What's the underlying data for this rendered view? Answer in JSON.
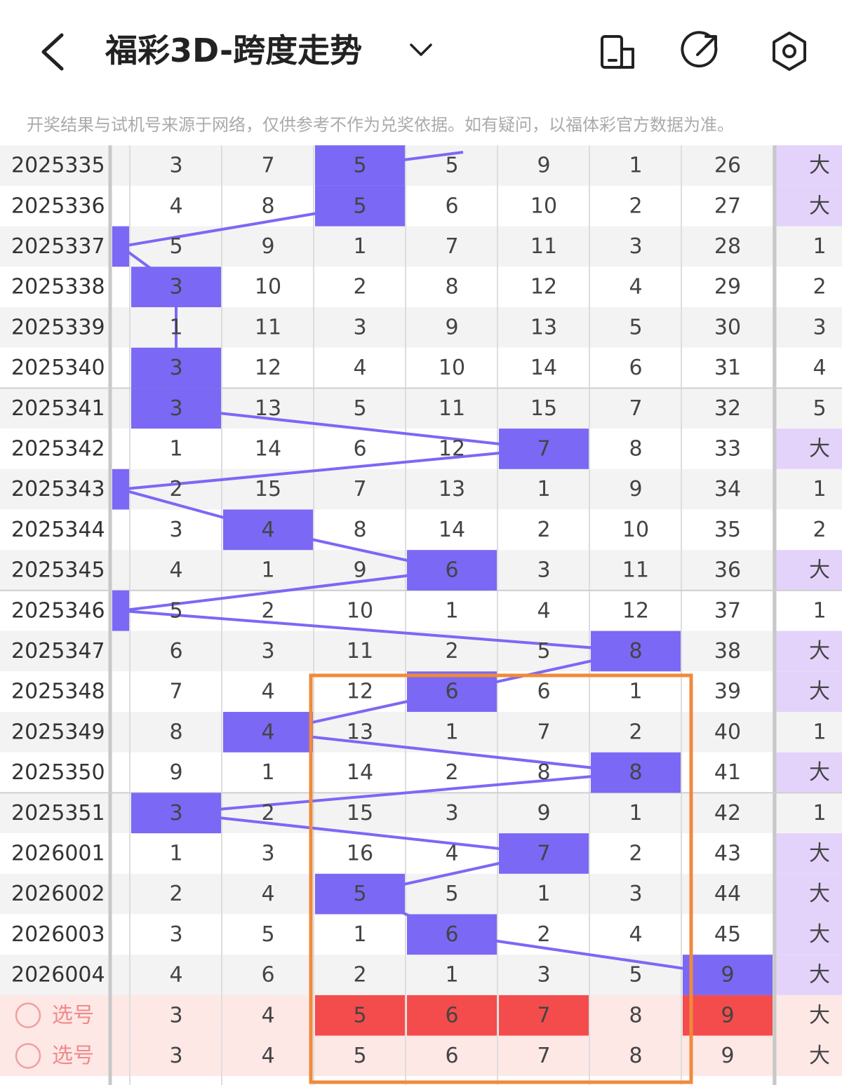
{
  "header": {
    "title": "福彩3D-跨度走势",
    "notice": "开奖结果与试机号来源于网络，仅供参考不作为兑奖依据。如有疑问，以福体彩官方数据为准。"
  },
  "table": {
    "rows": [
      {
        "issue": "2025335",
        "cells": [
          "3",
          "7",
          {
            "text": "5",
            "hit": true
          },
          "5",
          "9",
          "1",
          "26",
          "大"
        ]
      },
      {
        "issue": "2025336",
        "cells": [
          "4",
          "8",
          {
            "text": "5",
            "hit": true
          },
          "6",
          "10",
          "2",
          "27",
          "大"
        ]
      },
      {
        "issue": "2025337",
        "edge_hit": true,
        "cells": [
          "5",
          "9",
          "1",
          "7",
          "11",
          "3",
          "28",
          "1"
        ]
      },
      {
        "issue": "2025338",
        "cells": [
          {
            "text": "3",
            "hit": true
          },
          "10",
          "2",
          "8",
          "12",
          "4",
          "29",
          "2"
        ]
      },
      {
        "issue": "2025339",
        "cells": [
          "1",
          "11",
          "3",
          "9",
          "13",
          "5",
          "30",
          "3"
        ]
      },
      {
        "issue": "2025340",
        "cells": [
          {
            "text": "3",
            "hit": true
          },
          "12",
          "4",
          "10",
          "14",
          "6",
          "31",
          "4"
        ]
      },
      {
        "issue": "2025341",
        "cells": [
          {
            "text": "3",
            "hit": true
          },
          "13",
          "5",
          "11",
          "15",
          "7",
          "32",
          "5"
        ]
      },
      {
        "issue": "2025342",
        "cells": [
          "1",
          "14",
          "6",
          "12",
          {
            "text": "7",
            "hit": true
          },
          "8",
          "33",
          "大"
        ]
      },
      {
        "issue": "2025343",
        "edge_hit": true,
        "cells": [
          "2",
          "15",
          "7",
          "13",
          "1",
          "9",
          "34",
          "1"
        ]
      },
      {
        "issue": "2025344",
        "cells": [
          "3",
          {
            "text": "4",
            "hit": true
          },
          "8",
          "14",
          "2",
          "10",
          "35",
          "2"
        ]
      },
      {
        "issue": "2025345",
        "cells": [
          "4",
          "1",
          "9",
          {
            "text": "6",
            "hit": true
          },
          "3",
          "11",
          "36",
          "大"
        ]
      },
      {
        "issue": "2025346",
        "edge_hit": true,
        "cells": [
          "5",
          "2",
          "10",
          "1",
          "4",
          "12",
          "37",
          "1"
        ]
      },
      {
        "issue": "2025347",
        "cells": [
          "6",
          "3",
          "11",
          "2",
          "5",
          {
            "text": "8",
            "hit": true
          },
          "38",
          "大"
        ]
      },
      {
        "issue": "2025348",
        "cells": [
          "7",
          "4",
          "12",
          {
            "text": "6",
            "hit": true
          },
          "6",
          "1",
          "39",
          "大"
        ]
      },
      {
        "issue": "2025349",
        "cells": [
          "8",
          {
            "text": "4",
            "hit": true
          },
          "13",
          "1",
          "7",
          "2",
          "40",
          "1"
        ]
      },
      {
        "issue": "2025350",
        "cells": [
          "9",
          "1",
          "14",
          "2",
          "8",
          {
            "text": "8",
            "hit": true
          },
          "41",
          "大"
        ]
      },
      {
        "issue": "2025351",
        "cells": [
          {
            "text": "3",
            "hit": true
          },
          "2",
          "15",
          "3",
          "9",
          "1",
          "42",
          "1"
        ]
      },
      {
        "issue": "2026001",
        "cells": [
          "1",
          "3",
          "16",
          "4",
          {
            "text": "7",
            "hit": true
          },
          "2",
          "43",
          "大"
        ]
      },
      {
        "issue": "2026002",
        "cells": [
          "2",
          "4",
          {
            "text": "5",
            "hit": true
          },
          "5",
          "1",
          "3",
          "44",
          "大"
        ]
      },
      {
        "issue": "2026003",
        "cells": [
          "3",
          "5",
          "1",
          {
            "text": "6",
            "hit": true
          },
          "2",
          "4",
          "45",
          "大"
        ]
      },
      {
        "issue": "2026004",
        "cells": [
          "4",
          "6",
          "2",
          "1",
          "3",
          "5",
          {
            "text": "9",
            "hit": true
          },
          "大"
        ]
      }
    ],
    "pick_rows": [
      {
        "label": "选号",
        "cells": [
          "3",
          "4",
          {
            "text": "5",
            "selected": true
          },
          {
            "text": "6",
            "selected": true
          },
          {
            "text": "7",
            "selected": true
          },
          "8",
          {
            "text": "9",
            "selected": true
          },
          "大"
        ]
      },
      {
        "label": "选号",
        "cells": [
          "3",
          "4",
          "5",
          "6",
          "7",
          "8",
          "9",
          "大"
        ]
      }
    ]
  }
}
